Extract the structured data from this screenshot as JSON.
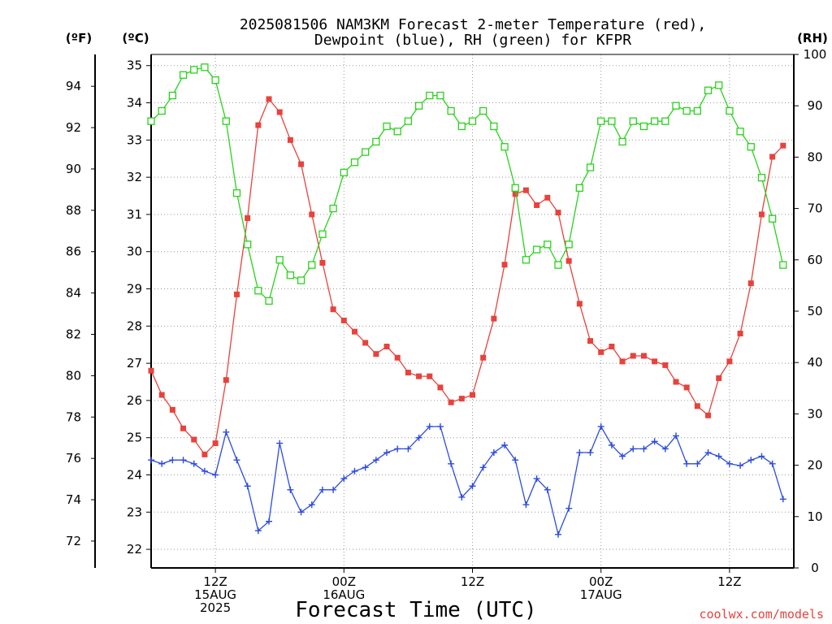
{
  "title_line1": "2025081506 NAM3KM Forecast 2-meter Temperature (red),",
  "title_line2": "Dewpoint (blue), RH (green) for KFPR",
  "unit_f": "(ºF)",
  "unit_c": "(ºC)",
  "unit_rh": "(RH)",
  "xlabel": "Forecast Time (UTC)",
  "credit": "coolwx.com/models",
  "colors": {
    "temperature": "#e8423c",
    "dewpoint": "#2c4be0",
    "rh": "#2ad21c",
    "grid": "#999999"
  },
  "chart_data": {
    "type": "line",
    "x_axis": {
      "unit": "hours from 2025-08-15 06Z",
      "range": [
        0,
        60
      ],
      "ticks": [
        {
          "hour": 6,
          "lines": [
            "12Z",
            "15AUG",
            "2025"
          ]
        },
        {
          "hour": 18,
          "lines": [
            "00Z",
            "16AUG"
          ]
        },
        {
          "hour": 30,
          "lines": [
            "12Z"
          ]
        },
        {
          "hour": 42,
          "lines": [
            "00Z",
            "17AUG"
          ]
        },
        {
          "hour": 54,
          "lines": [
            "12Z"
          ]
        }
      ]
    },
    "y_left_f": {
      "ticks": [
        72,
        74,
        76,
        78,
        80,
        82,
        84,
        86,
        88,
        90,
        92,
        94
      ]
    },
    "y_left_c": {
      "range": [
        21.5,
        35.3
      ],
      "ticks": [
        22,
        23,
        24,
        25,
        26,
        27,
        28,
        29,
        30,
        31,
        32,
        33,
        34,
        35
      ]
    },
    "y_right_rh": {
      "range": [
        0,
        100
      ],
      "ticks": [
        0,
        10,
        20,
        30,
        40,
        50,
        60,
        70,
        80,
        90,
        100
      ]
    },
    "grid": true,
    "series": [
      {
        "key": "temperature",
        "axis": "c",
        "marker": "filled-square",
        "values": [
          26.8,
          26.15,
          25.75,
          25.25,
          24.95,
          24.55,
          24.85,
          26.55,
          28.85,
          30.9,
          33.4,
          34.1,
          33.75,
          33.0,
          32.35,
          31.0,
          29.7,
          28.45,
          28.15,
          27.85,
          27.55,
          27.25,
          27.45,
          27.15,
          26.75,
          26.65,
          26.65,
          26.35,
          25.95,
          26.05,
          26.15,
          27.15,
          28.2,
          29.65,
          31.55,
          31.65,
          31.25,
          31.45,
          31.05,
          29.75,
          28.6,
          27.6,
          27.3,
          27.45,
          27.05,
          27.2,
          27.2,
          27.05,
          26.95,
          26.5,
          26.35,
          25.85,
          25.6,
          26.6,
          27.05,
          27.8,
          29.15,
          31.0,
          32.55,
          32.85
        ]
      },
      {
        "key": "dewpoint",
        "axis": "c",
        "marker": "plus",
        "values": [
          24.4,
          24.3,
          24.4,
          24.4,
          24.3,
          24.1,
          24.0,
          25.15,
          24.4,
          23.7,
          22.5,
          22.75,
          24.85,
          23.6,
          23.0,
          23.2,
          23.6,
          23.6,
          23.9,
          24.1,
          24.2,
          24.4,
          24.6,
          24.7,
          24.7,
          25.0,
          25.3,
          25.3,
          24.3,
          23.4,
          23.7,
          24.2,
          24.6,
          24.8,
          24.4,
          23.2,
          23.9,
          23.6,
          22.4,
          23.1,
          24.6,
          24.6,
          25.3,
          24.8,
          24.5,
          24.7,
          24.7,
          24.9,
          24.7,
          25.05,
          24.3,
          24.3,
          24.6,
          24.5,
          24.3,
          24.25,
          24.4,
          24.5,
          24.3,
          23.35
        ]
      },
      {
        "key": "rh",
        "axis": "rh",
        "marker": "open-square",
        "values": [
          87,
          89,
          92,
          96,
          97,
          97.5,
          95,
          87,
          73,
          63,
          54,
          52,
          60,
          57,
          56,
          59,
          65,
          70,
          77,
          79,
          81,
          83,
          86,
          85,
          87,
          90,
          92,
          92,
          89,
          86,
          87,
          89,
          86,
          82,
          74,
          60,
          62,
          63,
          59,
          63,
          74,
          78,
          87,
          87,
          83,
          87,
          86,
          87,
          87,
          90,
          89,
          89,
          93,
          94,
          89,
          85,
          82,
          76,
          68,
          59
        ]
      }
    ]
  }
}
